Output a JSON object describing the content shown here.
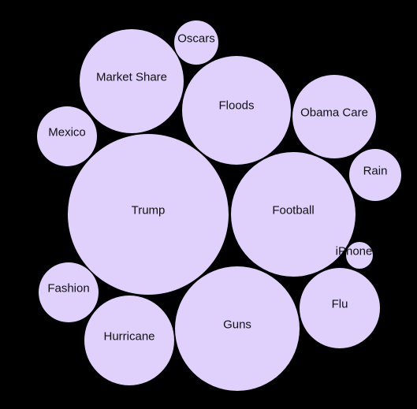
{
  "colors": {
    "background": "#000000",
    "bubble": "#dfd1fb",
    "label": "#111111"
  },
  "chart_data": {
    "type": "bubble",
    "title": "",
    "items": [
      {
        "label": "Trump",
        "value": 102
      },
      {
        "label": "Football",
        "value": 79
      },
      {
        "label": "Guns",
        "value": 79
      },
      {
        "label": "Floods",
        "value": 69
      },
      {
        "label": "Market Share",
        "value": 66
      },
      {
        "label": "Hurricane",
        "value": 57
      },
      {
        "label": "Obama Care",
        "value": 53
      },
      {
        "label": "Flu",
        "value": 51
      },
      {
        "label": "Mexico",
        "value": 38
      },
      {
        "label": "Fashion",
        "value": 38
      },
      {
        "label": "Rain",
        "value": 33
      },
      {
        "label": "Oscars",
        "value": 28
      },
      {
        "label": "iPhone",
        "value": 17
      }
    ]
  }
}
